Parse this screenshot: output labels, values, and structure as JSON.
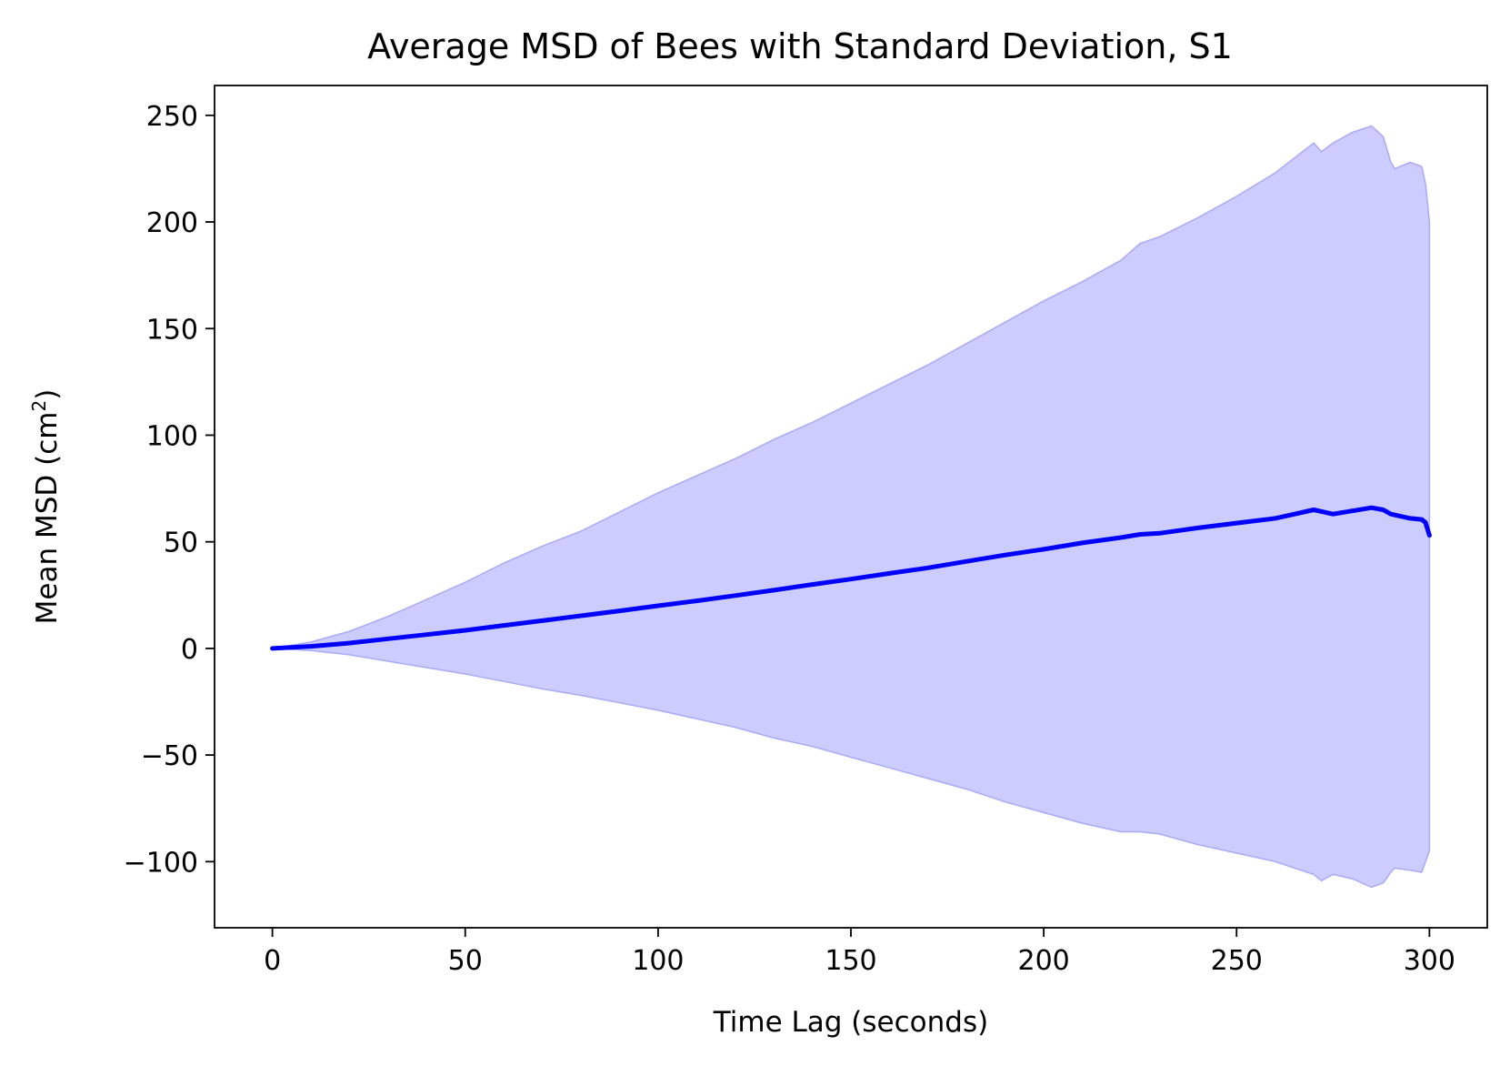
{
  "chart_data": {
    "type": "area",
    "title": "Average MSD of Bees with Standard Deviation, S1",
    "xlabel": "Time Lag (seconds)",
    "ylabel": "Mean MSD (cm",
    "ylabel_sup": "2",
    "ylabel_suffix": ")",
    "xlim": [
      -15,
      315
    ],
    "ylim": [
      -131,
      264
    ],
    "xticks": [
      0,
      50,
      100,
      150,
      200,
      250,
      300
    ],
    "xtick_labels": [
      "0",
      "50",
      "100",
      "150",
      "200",
      "250",
      "300"
    ],
    "yticks": [
      -100,
      -50,
      0,
      50,
      100,
      150,
      200,
      250
    ],
    "ytick_labels": [
      "−100",
      "−50",
      "0",
      "50",
      "100",
      "150",
      "200",
      "250"
    ],
    "grid": false,
    "colors": {
      "mean_line": "#0000ff",
      "band_fill": "#ccccff",
      "band_edge": "#aaaaf6"
    },
    "series": [
      {
        "role": "mean",
        "x": [
          0,
          10,
          20,
          30,
          40,
          50,
          60,
          70,
          80,
          90,
          100,
          110,
          120,
          130,
          140,
          150,
          160,
          170,
          180,
          190,
          200,
          210,
          220,
          225,
          230,
          240,
          250,
          260,
          270,
          275,
          280,
          285,
          288,
          290,
          295,
          298,
          299,
          300
        ],
        "values": [
          0,
          1,
          2.5,
          4.5,
          6.5,
          8.5,
          10.8,
          13,
          15.3,
          17.6,
          20,
          22.3,
          24.8,
          27.3,
          30,
          32.5,
          35.2,
          37.8,
          40.8,
          43.8,
          46.5,
          49.5,
          52,
          53.5,
          54,
          56.5,
          58.8,
          61,
          65,
          63,
          64.5,
          66,
          65,
          63,
          61,
          60.5,
          59,
          53
        ]
      },
      {
        "role": "upper",
        "x": [
          0,
          10,
          20,
          30,
          40,
          50,
          60,
          70,
          80,
          90,
          100,
          110,
          120,
          130,
          140,
          150,
          160,
          170,
          180,
          190,
          200,
          210,
          220,
          225,
          230,
          240,
          250,
          260,
          270,
          272,
          275,
          280,
          285,
          288,
          290,
          291,
          295,
          298,
          299,
          300
        ],
        "values": [
          0,
          3,
          8,
          15,
          23,
          31,
          40,
          48,
          55,
          64,
          73,
          81,
          89,
          98,
          106,
          115,
          124,
          133,
          143,
          153,
          163,
          172,
          182,
          190,
          193,
          202,
          212,
          223,
          237,
          233,
          237,
          242,
          245,
          240,
          228,
          225,
          228,
          226,
          218,
          200
        ]
      },
      {
        "role": "lower",
        "x": [
          0,
          10,
          20,
          30,
          40,
          50,
          60,
          70,
          80,
          90,
          100,
          110,
          120,
          130,
          140,
          150,
          160,
          170,
          180,
          190,
          200,
          210,
          220,
          225,
          230,
          240,
          250,
          260,
          270,
          272,
          275,
          280,
          285,
          288,
          290,
          291,
          295,
          298,
          299,
          300
        ],
        "values": [
          0,
          -1,
          -3,
          -6,
          -9,
          -12,
          -15.5,
          -19,
          -22,
          -25.5,
          -29,
          -33,
          -37,
          -42,
          -46,
          -51,
          -56,
          -61,
          -66,
          -72,
          -77,
          -82,
          -86,
          -86,
          -87,
          -92,
          -96,
          -100,
          -106,
          -109,
          -106,
          -108,
          -112,
          -110,
          -105,
          -103,
          -104,
          -105,
          -100,
          -95
        ]
      }
    ]
  }
}
